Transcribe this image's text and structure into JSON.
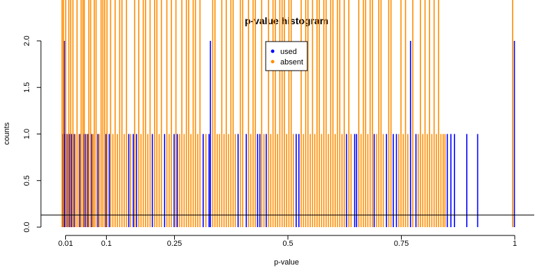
{
  "chart_data": {
    "type": "bar",
    "title": "p-value histogram",
    "xlabel": "p-value",
    "ylabel": "counts",
    "xlim": [
      0,
      1
    ],
    "ylim": [
      0,
      2
    ],
    "x_ticks": [
      {
        "value": 0.01,
        "label": "0.01"
      },
      {
        "value": 0.1,
        "label": "0.1"
      },
      {
        "value": 0.25,
        "label": "0.25"
      },
      {
        "value": 0.5,
        "label": "0.5"
      },
      {
        "value": 0.75,
        "label": "0.75"
      },
      {
        "value": 1.0,
        "label": "1"
      }
    ],
    "y_ticks": [
      {
        "value": 0.0,
        "label": "0.0"
      },
      {
        "value": 0.5,
        "label": "0.5"
      },
      {
        "value": 1.0,
        "label": "1.0"
      },
      {
        "value": 1.5,
        "label": "1.5"
      },
      {
        "value": 2.0,
        "label": "2.0"
      }
    ],
    "reference_line_y": 0.13,
    "legend_position": "top-center",
    "series": [
      {
        "name": "used",
        "color": "#0000ff",
        "points": [
          [
            0.003,
            1
          ],
          [
            0.006,
            2
          ],
          [
            0.008,
            1
          ],
          [
            0.012,
            1
          ],
          [
            0.015,
            1
          ],
          [
            0.018,
            1
          ],
          [
            0.022,
            1
          ],
          [
            0.028,
            1
          ],
          [
            0.04,
            1
          ],
          [
            0.048,
            1
          ],
          [
            0.052,
            1
          ],
          [
            0.058,
            1
          ],
          [
            0.066,
            1
          ],
          [
            0.08,
            1
          ],
          [
            0.098,
            1
          ],
          [
            0.105,
            1
          ],
          [
            0.148,
            1
          ],
          [
            0.158,
            1
          ],
          [
            0.165,
            1
          ],
          [
            0.2,
            1
          ],
          [
            0.227,
            1
          ],
          [
            0.248,
            1
          ],
          [
            0.255,
            1
          ],
          [
            0.312,
            1
          ],
          [
            0.325,
            1
          ],
          [
            0.328,
            2
          ],
          [
            0.389,
            1
          ],
          [
            0.407,
            1
          ],
          [
            0.432,
            1
          ],
          [
            0.437,
            1
          ],
          [
            0.451,
            1
          ],
          [
            0.517,
            1
          ],
          [
            0.523,
            1
          ],
          [
            0.628,
            1
          ],
          [
            0.646,
            1
          ],
          [
            0.65,
            1
          ],
          [
            0.689,
            1
          ],
          [
            0.716,
            1
          ],
          [
            0.731,
            1
          ],
          [
            0.738,
            1
          ],
          [
            0.769,
            2
          ],
          [
            0.781,
            1
          ],
          [
            0.85,
            1
          ],
          [
            0.858,
            1
          ],
          [
            0.866,
            1
          ],
          [
            0.893,
            1
          ],
          [
            0.917,
            1
          ],
          [
            0.998,
            2
          ]
        ]
      },
      {
        "name": "absent",
        "color": "#ff8c00",
        "points": [
          [
            0.001,
            2
          ],
          [
            0.004,
            2
          ],
          [
            0.009,
            2
          ],
          [
            0.013,
            1
          ],
          [
            0.016,
            2
          ],
          [
            0.02,
            2
          ],
          [
            0.025,
            2
          ],
          [
            0.03,
            1
          ],
          [
            0.034,
            2
          ],
          [
            0.038,
            1
          ],
          [
            0.043,
            2
          ],
          [
            0.047,
            2
          ],
          [
            0.05,
            2
          ],
          [
            0.055,
            1
          ],
          [
            0.06,
            2
          ],
          [
            0.064,
            2
          ],
          [
            0.069,
            1
          ],
          [
            0.072,
            2
          ],
          [
            0.076,
            2
          ],
          [
            0.083,
            1
          ],
          [
            0.087,
            2
          ],
          [
            0.091,
            2
          ],
          [
            0.095,
            2
          ],
          [
            0.1,
            2
          ],
          [
            0.108,
            2
          ],
          [
            0.113,
            1
          ],
          [
            0.118,
            2
          ],
          [
            0.123,
            1
          ],
          [
            0.128,
            2
          ],
          [
            0.133,
            2
          ],
          [
            0.138,
            1
          ],
          [
            0.143,
            2
          ],
          [
            0.152,
            1
          ],
          [
            0.161,
            2
          ],
          [
            0.17,
            2
          ],
          [
            0.175,
            1
          ],
          [
            0.18,
            2
          ],
          [
            0.185,
            2
          ],
          [
            0.19,
            1
          ],
          [
            0.195,
            2
          ],
          [
            0.205,
            2
          ],
          [
            0.21,
            2
          ],
          [
            0.215,
            1
          ],
          [
            0.22,
            2
          ],
          [
            0.232,
            2
          ],
          [
            0.237,
            1
          ],
          [
            0.242,
            2
          ],
          [
            0.252,
            2
          ],
          [
            0.26,
            1
          ],
          [
            0.265,
            2
          ],
          [
            0.27,
            1
          ],
          [
            0.275,
            2
          ],
          [
            0.28,
            2
          ],
          [
            0.285,
            1
          ],
          [
            0.29,
            2
          ],
          [
            0.295,
            2
          ],
          [
            0.3,
            1
          ],
          [
            0.305,
            2
          ],
          [
            0.318,
            1
          ],
          [
            0.333,
            2
          ],
          [
            0.338,
            2
          ],
          [
            0.343,
            1
          ],
          [
            0.348,
            1
          ],
          [
            0.353,
            2
          ],
          [
            0.358,
            1
          ],
          [
            0.363,
            2
          ],
          [
            0.368,
            1
          ],
          [
            0.373,
            2
          ],
          [
            0.378,
            2
          ],
          [
            0.383,
            1
          ],
          [
            0.394,
            2
          ],
          [
            0.399,
            2
          ],
          [
            0.412,
            2
          ],
          [
            0.417,
            1
          ],
          [
            0.422,
            2
          ],
          [
            0.427,
            2
          ],
          [
            0.441,
            2
          ],
          [
            0.446,
            1
          ],
          [
            0.456,
            2
          ],
          [
            0.461,
            1
          ],
          [
            0.466,
            2
          ],
          [
            0.471,
            2
          ],
          [
            0.476,
            1
          ],
          [
            0.481,
            2
          ],
          [
            0.486,
            2
          ],
          [
            0.491,
            2
          ],
          [
            0.496,
            1
          ],
          [
            0.501,
            2
          ],
          [
            0.506,
            2
          ],
          [
            0.511,
            1
          ],
          [
            0.528,
            2
          ],
          [
            0.533,
            1
          ],
          [
            0.538,
            2
          ],
          [
            0.543,
            2
          ],
          [
            0.548,
            1
          ],
          [
            0.553,
            2
          ],
          [
            0.558,
            1
          ],
          [
            0.563,
            2
          ],
          [
            0.568,
            2
          ],
          [
            0.573,
            1
          ],
          [
            0.578,
            2
          ],
          [
            0.583,
            2
          ],
          [
            0.588,
            1
          ],
          [
            0.593,
            2
          ],
          [
            0.598,
            2
          ],
          [
            0.603,
            1
          ],
          [
            0.608,
            2
          ],
          [
            0.613,
            2
          ],
          [
            0.618,
            1
          ],
          [
            0.623,
            2
          ],
          [
            0.633,
            2
          ],
          [
            0.638,
            1
          ],
          [
            0.655,
            2
          ],
          [
            0.66,
            1
          ],
          [
            0.665,
            2
          ],
          [
            0.67,
            2
          ],
          [
            0.675,
            1
          ],
          [
            0.68,
            2
          ],
          [
            0.685,
            2
          ],
          [
            0.694,
            1
          ],
          [
            0.699,
            2
          ],
          [
            0.704,
            2
          ],
          [
            0.709,
            1
          ],
          [
            0.721,
            2
          ],
          [
            0.726,
            2
          ],
          [
            0.743,
            1
          ],
          [
            0.748,
            2
          ],
          [
            0.753,
            1
          ],
          [
            0.758,
            2
          ],
          [
            0.763,
            1
          ],
          [
            0.774,
            2
          ],
          [
            0.786,
            1
          ],
          [
            0.791,
            2
          ],
          [
            0.796,
            1
          ],
          [
            0.801,
            2
          ],
          [
            0.806,
            1
          ],
          [
            0.811,
            2
          ],
          [
            0.816,
            1
          ],
          [
            0.821,
            2
          ],
          [
            0.826,
            1
          ],
          [
            0.831,
            2
          ],
          [
            0.836,
            1
          ],
          [
            0.841,
            1
          ],
          [
            0.845,
            1
          ],
          [
            0.994,
            2
          ]
        ]
      }
    ]
  }
}
